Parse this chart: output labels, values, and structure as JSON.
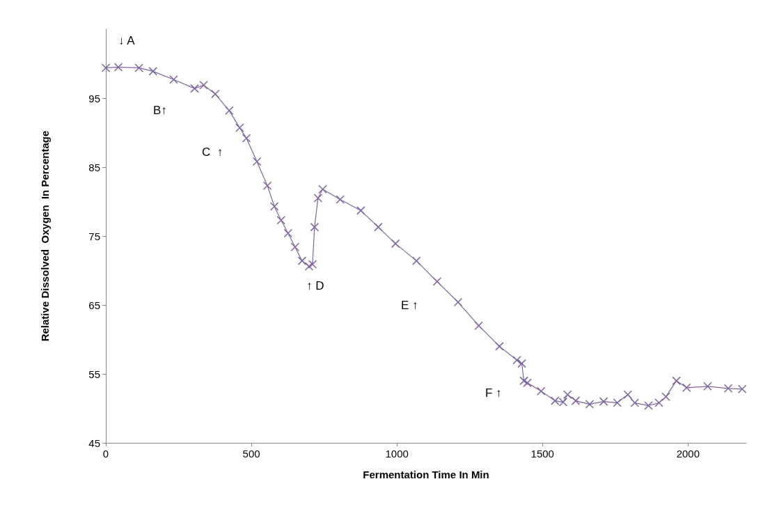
{
  "chart_data": {
    "type": "line",
    "xlabel": "Fermentation Time In Min",
    "ylabel": "Relative Dissolved  Oxygen  In Percentage",
    "xlim": [
      0,
      2200
    ],
    "xticks": [
      0,
      500,
      1000,
      1500,
      2000
    ],
    "ylim": [
      45,
      105
    ],
    "yticks": [
      45,
      55,
      65,
      75,
      85,
      95
    ],
    "grid": false,
    "marker": "cross",
    "line_style": "solid",
    "annotations": [
      "↓ A",
      "B↑",
      "C  ↑",
      "↑ D",
      "E ↑",
      "F ↑"
    ],
    "series": [
      {
        "color": "#8064a2",
        "x": [
          0,
          43,
          114,
          162,
          233,
          305,
          336,
          376,
          424,
          460,
          483,
          519,
          555,
          579,
          602,
          626,
          650,
          674,
          698,
          710,
          717,
          729,
          745,
          805,
          876,
          936,
          995,
          1067,
          1138,
          1210,
          1281,
          1352,
          1412,
          1429,
          1436,
          1448,
          1495,
          1543,
          1571,
          1586,
          1614,
          1662,
          1710,
          1757,
          1793,
          1817,
          1864,
          1900,
          1924,
          1960,
          1995,
          2067,
          2138,
          2186
        ],
        "values": [
          99.4,
          99.5,
          99.4,
          98.9,
          97.7,
          96.4,
          96.9,
          95.6,
          93.2,
          90.7,
          89.2,
          85.8,
          82.3,
          79.3,
          77.3,
          75.4,
          73.4,
          71.4,
          70.6,
          70.9,
          76.3,
          80.5,
          81.8,
          80.3,
          78.7,
          76.3,
          73.9,
          71.4,
          68.4,
          65.4,
          62.0,
          59.0,
          57.0,
          56.5,
          54.0,
          53.7,
          52.5,
          51.1,
          50.9,
          52.0,
          51.1,
          50.6,
          51.0,
          50.8,
          52.0,
          50.8,
          50.4,
          50.8,
          51.7,
          54.0,
          53.0,
          53.2,
          52.9,
          52.8
        ]
      }
    ]
  }
}
